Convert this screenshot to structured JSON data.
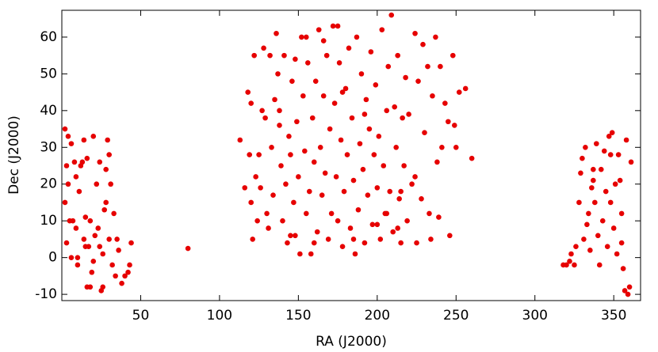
{
  "chart_data": {
    "type": "scatter",
    "x_label": "RA (J2000)",
    "y_label": "Dec (J2000)",
    "xlim": [
      0,
      367
    ],
    "ylim": [
      -11.7,
      67.3
    ],
    "xticks": [
      50,
      100,
      150,
      200,
      250,
      300,
      350
    ],
    "yticks": [
      -10,
      0,
      10,
      20,
      30,
      40,
      50,
      60
    ],
    "color": "#e60000",
    "x": [
      2,
      3,
      4,
      2,
      5,
      3,
      6,
      4,
      8,
      7,
      9,
      10,
      12,
      13,
      11,
      14,
      15,
      16,
      18,
      14,
      17,
      18,
      20,
      22,
      24,
      23,
      25,
      26,
      27,
      28,
      29,
      30,
      31,
      30,
      32,
      34,
      35,
      38,
      40,
      42,
      43,
      44,
      19,
      21,
      26,
      28,
      10,
      6,
      15,
      33,
      9,
      16,
      24,
      36,
      20,
      80,
      113,
      116,
      118,
      119,
      120,
      121,
      122,
      123,
      124,
      125,
      126,
      128,
      129,
      130,
      131,
      132,
      133,
      134,
      135,
      136,
      137,
      138,
      139,
      140,
      141,
      142,
      143,
      144,
      145,
      146,
      147,
      148,
      149,
      150,
      151,
      152,
      153,
      154,
      155,
      156,
      157,
      158,
      159,
      160,
      161,
      162,
      163,
      164,
      165,
      166,
      167,
      168,
      169,
      170,
      171,
      172,
      173,
      174,
      175,
      176,
      177,
      178,
      179,
      180,
      181,
      182,
      183,
      184,
      185,
      186,
      187,
      188,
      189,
      190,
      191,
      192,
      193,
      194,
      195,
      196,
      197,
      198,
      199,
      200,
      201,
      202,
      203,
      204,
      205,
      206,
      207,
      208,
      209,
      210,
      211,
      212,
      213,
      214,
      215,
      216,
      217,
      218,
      219,
      220,
      222,
      224,
      225,
      226,
      228,
      229,
      230,
      232,
      233,
      234,
      235,
      237,
      238,
      239,
      240,
      241,
      243,
      245,
      246,
      248,
      249,
      250,
      252,
      256,
      260,
      120,
      127,
      145,
      160,
      185,
      200,
      215,
      175,
      155,
      166,
      148,
      138,
      178,
      192,
      206,
      224,
      213,
      318,
      320,
      322,
      323,
      325,
      328,
      329,
      330,
      331,
      332,
      333,
      334,
      335,
      336,
      337,
      338,
      339,
      340,
      341,
      342,
      343,
      344,
      345,
      346,
      347,
      348,
      349,
      350,
      351,
      352,
      353,
      354,
      355,
      356,
      357,
      358,
      359,
      360,
      361,
      355,
      348,
      337,
      326
    ],
    "values": [
      35,
      25,
      20,
      15,
      10,
      4,
      31,
      33,
      26,
      10,
      8,
      0,
      25,
      26,
      18,
      5,
      3,
      -8,
      -8,
      32,
      3,
      10,
      33,
      20,
      26,
      8,
      -9,
      -8,
      13,
      24,
      32,
      28,
      20,
      5,
      -2,
      -5,
      5,
      -7,
      -5,
      -4,
      -2,
      4,
      -4,
      6,
      1,
      15,
      -2,
      0,
      11,
      12,
      22,
      27,
      3,
      2,
      -1,
      2.5,
      32,
      19,
      45,
      28,
      15,
      5,
      55,
      22,
      10,
      28,
      19,
      57,
      38,
      12,
      8,
      55,
      30,
      17,
      43,
      61,
      50,
      36,
      25,
      10,
      55,
      20,
      4,
      33,
      28,
      48,
      15,
      6,
      37,
      22,
      1,
      60,
      44,
      29,
      12,
      53,
      18,
      1,
      38,
      26,
      48,
      7,
      62,
      30,
      17,
      44,
      23,
      55,
      5,
      35,
      12,
      63,
      42,
      22,
      10,
      53,
      32,
      3,
      18,
      46,
      28,
      57,
      8,
      38,
      21,
      1,
      60,
      13,
      31,
      50,
      24,
      4,
      43,
      17,
      35,
      56,
      9,
      28,
      47,
      19,
      33,
      5,
      62,
      25,
      12,
      40,
      52,
      18,
      66,
      7,
      41,
      30,
      55,
      16,
      4,
      38,
      25,
      49,
      10,
      39,
      20,
      61,
      4,
      48,
      16,
      58,
      34,
      52,
      12,
      5,
      44,
      60,
      26,
      11,
      52,
      30,
      42,
      37,
      6,
      55,
      36,
      30,
      45,
      46,
      27,
      42,
      40,
      6,
      4,
      5,
      9,
      18,
      63,
      60,
      59,
      54,
      40,
      45,
      39,
      12,
      22,
      8,
      -2,
      -2,
      -1,
      1,
      -2,
      15,
      23,
      27,
      5,
      30,
      9,
      12,
      2,
      19,
      24,
      15,
      31,
      6,
      -2,
      24,
      10,
      29,
      18,
      3,
      33,
      15,
      34,
      8,
      20,
      1,
      28,
      21,
      4,
      -3,
      -9,
      32,
      -10,
      -8,
      26,
      12,
      28,
      21,
      3
    ]
  }
}
